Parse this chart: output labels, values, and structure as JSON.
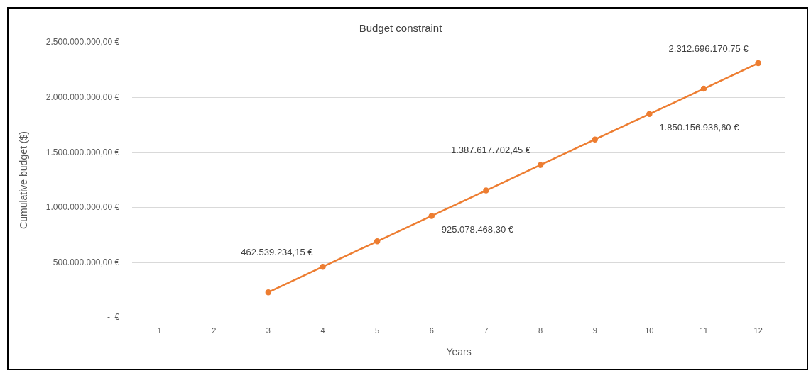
{
  "chart_data": {
    "type": "line",
    "title": "Budget constraint",
    "xlabel": "Years",
    "ylabel": "Cumulative budget ($)",
    "categories": [
      "1",
      "2",
      "3",
      "4",
      "5",
      "6",
      "7",
      "8",
      "9",
      "10",
      "11",
      "12"
    ],
    "series": [
      {
        "color": "#ed7d31",
        "values": [
          null,
          null,
          231000000,
          462539234.15,
          694000000,
          925078468.3,
          1156000000,
          1387617702.45,
          1619000000,
          1850156936.6,
          2081000000,
          2312696170.75
        ],
        "value_labels": [
          null,
          null,
          null,
          "462.539.234,15 €",
          null,
          "925.078.468,30 €",
          null,
          "1.387.617.702,45 €",
          null,
          "1.850.156.936,60 €",
          null,
          "2.312.696.170,75 €"
        ]
      }
    ],
    "ylim": [
      0,
      2500000000
    ],
    "yticks": [
      {
        "value": 0,
        "label": "-  €"
      },
      {
        "value": 500000000,
        "label": "500.000.000,00 €"
      },
      {
        "value": 1000000000,
        "label": "1.000.000.000,00 €"
      },
      {
        "value": 1500000000,
        "label": "1.500.000.000,00 €"
      },
      {
        "value": 2000000000,
        "label": "2.000.000.000,00 €"
      },
      {
        "value": 2500000000,
        "label": "2.500.000.000,00 €"
      }
    ],
    "grid": "y",
    "legend": false,
    "marker": "circle",
    "line_style": "solid"
  }
}
